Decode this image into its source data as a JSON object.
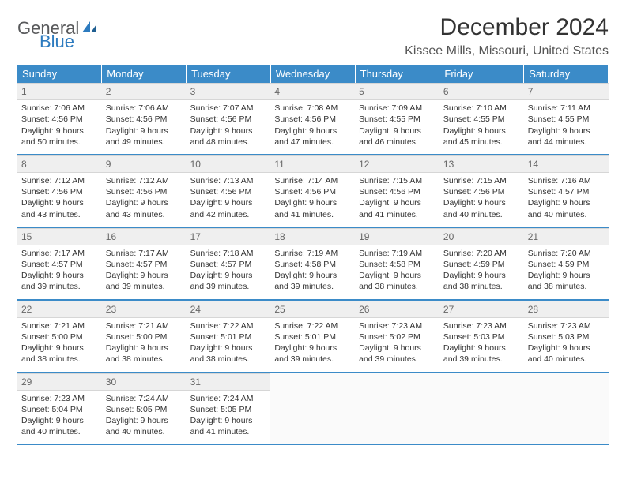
{
  "logo": {
    "part1": "General",
    "part2": "Blue"
  },
  "title": "December 2024",
  "location": "Kissee Mills, Missouri, United States",
  "colors": {
    "header_bg": "#3b8bc8",
    "header_text": "#ffffff",
    "daynum_bg": "#efefef",
    "row_border": "#3b8bc8",
    "logo_gray": "#58595b",
    "logo_blue": "#2d7bbf"
  },
  "weekdays": [
    "Sunday",
    "Monday",
    "Tuesday",
    "Wednesday",
    "Thursday",
    "Friday",
    "Saturday"
  ],
  "days": [
    {
      "n": "1",
      "sr": "7:06 AM",
      "ss": "4:56 PM",
      "dl": "9 hours and 50 minutes."
    },
    {
      "n": "2",
      "sr": "7:06 AM",
      "ss": "4:56 PM",
      "dl": "9 hours and 49 minutes."
    },
    {
      "n": "3",
      "sr": "7:07 AM",
      "ss": "4:56 PM",
      "dl": "9 hours and 48 minutes."
    },
    {
      "n": "4",
      "sr": "7:08 AM",
      "ss": "4:56 PM",
      "dl": "9 hours and 47 minutes."
    },
    {
      "n": "5",
      "sr": "7:09 AM",
      "ss": "4:55 PM",
      "dl": "9 hours and 46 minutes."
    },
    {
      "n": "6",
      "sr": "7:10 AM",
      "ss": "4:55 PM",
      "dl": "9 hours and 45 minutes."
    },
    {
      "n": "7",
      "sr": "7:11 AM",
      "ss": "4:55 PM",
      "dl": "9 hours and 44 minutes."
    },
    {
      "n": "8",
      "sr": "7:12 AM",
      "ss": "4:56 PM",
      "dl": "9 hours and 43 minutes."
    },
    {
      "n": "9",
      "sr": "7:12 AM",
      "ss": "4:56 PM",
      "dl": "9 hours and 43 minutes."
    },
    {
      "n": "10",
      "sr": "7:13 AM",
      "ss": "4:56 PM",
      "dl": "9 hours and 42 minutes."
    },
    {
      "n": "11",
      "sr": "7:14 AM",
      "ss": "4:56 PM",
      "dl": "9 hours and 41 minutes."
    },
    {
      "n": "12",
      "sr": "7:15 AM",
      "ss": "4:56 PM",
      "dl": "9 hours and 41 minutes."
    },
    {
      "n": "13",
      "sr": "7:15 AM",
      "ss": "4:56 PM",
      "dl": "9 hours and 40 minutes."
    },
    {
      "n": "14",
      "sr": "7:16 AM",
      "ss": "4:57 PM",
      "dl": "9 hours and 40 minutes."
    },
    {
      "n": "15",
      "sr": "7:17 AM",
      "ss": "4:57 PM",
      "dl": "9 hours and 39 minutes."
    },
    {
      "n": "16",
      "sr": "7:17 AM",
      "ss": "4:57 PM",
      "dl": "9 hours and 39 minutes."
    },
    {
      "n": "17",
      "sr": "7:18 AM",
      "ss": "4:57 PM",
      "dl": "9 hours and 39 minutes."
    },
    {
      "n": "18",
      "sr": "7:19 AM",
      "ss": "4:58 PM",
      "dl": "9 hours and 39 minutes."
    },
    {
      "n": "19",
      "sr": "7:19 AM",
      "ss": "4:58 PM",
      "dl": "9 hours and 38 minutes."
    },
    {
      "n": "20",
      "sr": "7:20 AM",
      "ss": "4:59 PM",
      "dl": "9 hours and 38 minutes."
    },
    {
      "n": "21",
      "sr": "7:20 AM",
      "ss": "4:59 PM",
      "dl": "9 hours and 38 minutes."
    },
    {
      "n": "22",
      "sr": "7:21 AM",
      "ss": "5:00 PM",
      "dl": "9 hours and 38 minutes."
    },
    {
      "n": "23",
      "sr": "7:21 AM",
      "ss": "5:00 PM",
      "dl": "9 hours and 38 minutes."
    },
    {
      "n": "24",
      "sr": "7:22 AM",
      "ss": "5:01 PM",
      "dl": "9 hours and 38 minutes."
    },
    {
      "n": "25",
      "sr": "7:22 AM",
      "ss": "5:01 PM",
      "dl": "9 hours and 39 minutes."
    },
    {
      "n": "26",
      "sr": "7:23 AM",
      "ss": "5:02 PM",
      "dl": "9 hours and 39 minutes."
    },
    {
      "n": "27",
      "sr": "7:23 AM",
      "ss": "5:03 PM",
      "dl": "9 hours and 39 minutes."
    },
    {
      "n": "28",
      "sr": "7:23 AM",
      "ss": "5:03 PM",
      "dl": "9 hours and 40 minutes."
    },
    {
      "n": "29",
      "sr": "7:23 AM",
      "ss": "5:04 PM",
      "dl": "9 hours and 40 minutes."
    },
    {
      "n": "30",
      "sr": "7:24 AM",
      "ss": "5:05 PM",
      "dl": "9 hours and 40 minutes."
    },
    {
      "n": "31",
      "sr": "7:24 AM",
      "ss": "5:05 PM",
      "dl": "9 hours and 41 minutes."
    }
  ],
  "labels": {
    "sunrise": "Sunrise: ",
    "sunset": "Sunset: ",
    "daylight": "Daylight: "
  }
}
